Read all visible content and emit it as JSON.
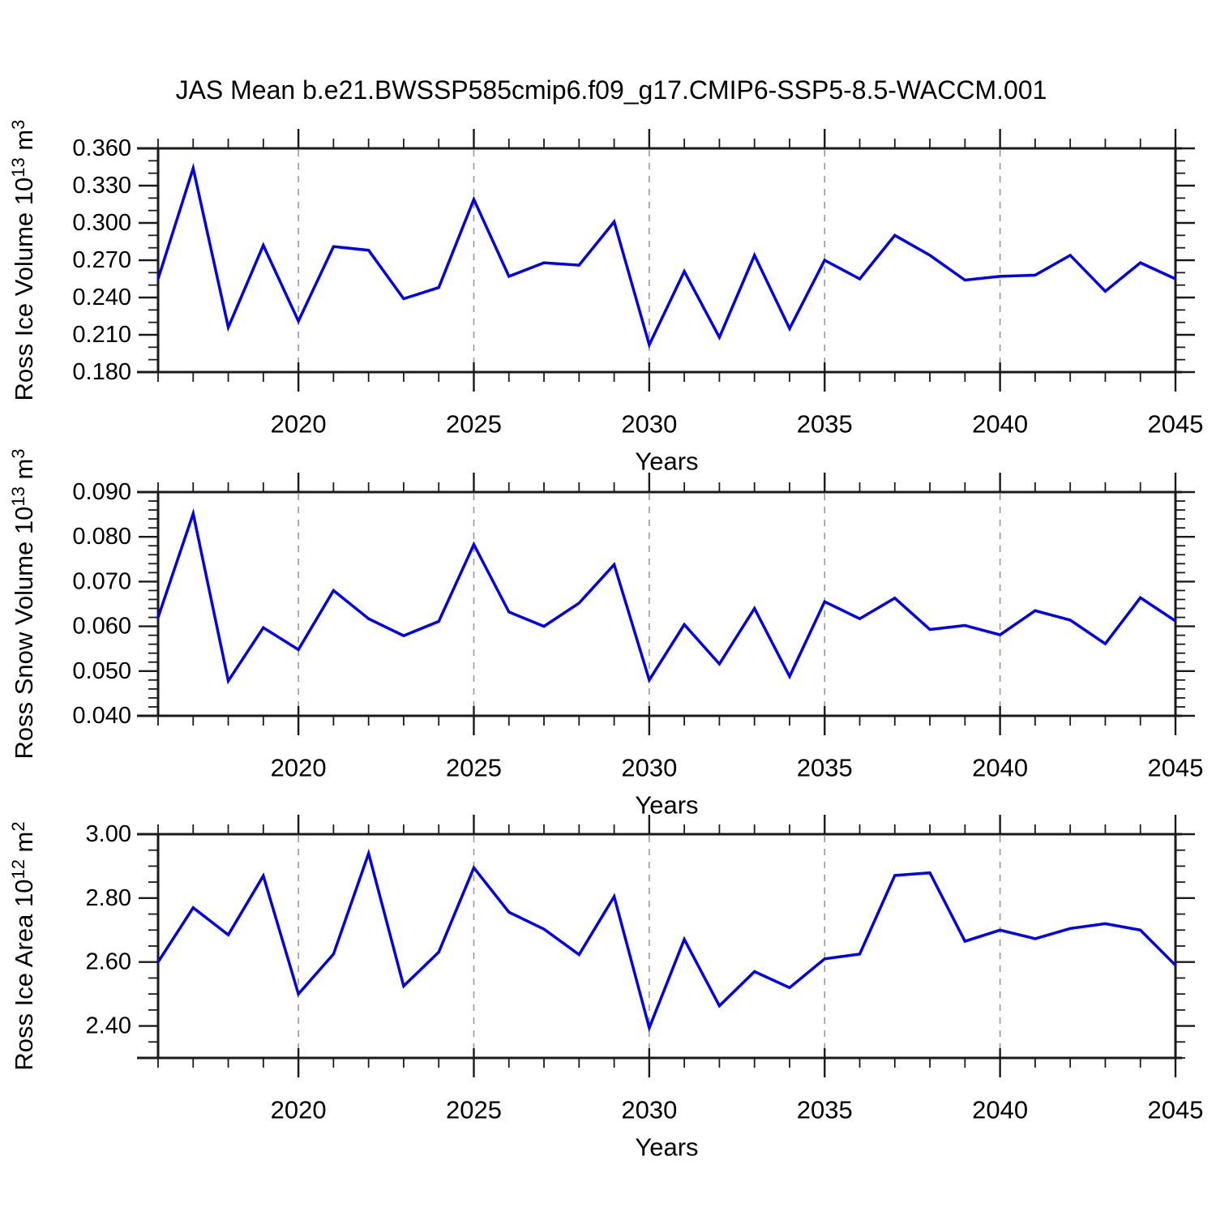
{
  "title": "JAS Mean b.e21.BWSSP585cmip6.f09_g17.CMIP6-SSP5-8.5-WACCM.001",
  "colors": {
    "series": "#0000EE",
    "grid_dashed": "#999999",
    "axis": "#1A1A1A",
    "text": "#000000",
    "background": "#FFFFFF"
  },
  "chart_data": [
    {
      "id": "ross-ice-volume",
      "type": "line",
      "ylabel": "Ross Ice Volume 10^13 m^3",
      "ylabel_parts": [
        {
          "t": "Ross Ice Volume 10"
        },
        {
          "t": "13",
          "sup": true
        },
        {
          "t": " m"
        },
        {
          "t": "3",
          "sup": true
        }
      ],
      "xlabel": "Years",
      "xlim": [
        2016,
        2045
      ],
      "xtick_labeled": [
        2020,
        2025,
        2030,
        2035,
        2040,
        2045
      ],
      "x_dashed_gridlines": [
        2020,
        2025,
        2030,
        2035,
        2040
      ],
      "ylim": [
        0.18,
        0.36
      ],
      "ytick_major_step": 0.03,
      "ytick_minor_step": 0.01,
      "ytick_decimals": 3,
      "x": [
        2016,
        2017,
        2018,
        2019,
        2020,
        2021,
        2022,
        2023,
        2024,
        2025,
        2026,
        2027,
        2028,
        2029,
        2030,
        2031,
        2032,
        2033,
        2034,
        2035,
        2036,
        2037,
        2038,
        2039,
        2040,
        2041,
        2042,
        2043,
        2044,
        2045
      ],
      "values": [
        0.255,
        0.344,
        0.216,
        0.282,
        0.221,
        0.281,
        0.278,
        0.239,
        0.248,
        0.319,
        0.257,
        0.268,
        0.266,
        0.301,
        0.202,
        0.261,
        0.208,
        0.274,
        0.215,
        0.27,
        0.255,
        0.29,
        0.274,
        0.254,
        0.257,
        0.258,
        0.274,
        0.245,
        0.268,
        0.255
      ]
    },
    {
      "id": "ross-snow-volume",
      "type": "line",
      "ylabel": "Ross Snow Volume 10^13 m^3",
      "ylabel_parts": [
        {
          "t": "Ross Snow Volume 10"
        },
        {
          "t": "13",
          "sup": true
        },
        {
          "t": " m"
        },
        {
          "t": "3",
          "sup": true
        }
      ],
      "xlabel": "Years",
      "xlim": [
        2016,
        2045
      ],
      "xtick_labeled": [
        2020,
        2025,
        2030,
        2035,
        2040,
        2045
      ],
      "x_dashed_gridlines": [
        2020,
        2025,
        2030,
        2035,
        2040
      ],
      "ylim": [
        0.04,
        0.09
      ],
      "ytick_major_step": 0.01,
      "ytick_minor_step": 0.002,
      "ytick_decimals": 3,
      "x": [
        2016,
        2017,
        2018,
        2019,
        2020,
        2021,
        2022,
        2023,
        2024,
        2025,
        2026,
        2027,
        2028,
        2029,
        2030,
        2031,
        2032,
        2033,
        2034,
        2035,
        2036,
        2037,
        2038,
        2039,
        2040,
        2041,
        2042,
        2043,
        2044,
        2045
      ],
      "values": [
        0.062,
        0.0852,
        0.0478,
        0.0597,
        0.0548,
        0.068,
        0.0617,
        0.0579,
        0.0611,
        0.0783,
        0.0632,
        0.06,
        0.0652,
        0.0738,
        0.048,
        0.0604,
        0.0516,
        0.064,
        0.0488,
        0.0655,
        0.0617,
        0.0663,
        0.0593,
        0.0602,
        0.0581,
        0.0635,
        0.0614,
        0.0561,
        0.0664,
        0.0612
      ]
    },
    {
      "id": "ross-ice-area",
      "type": "line",
      "ylabel": "Ross Ice Area 10^12 m^2",
      "ylabel_parts": [
        {
          "t": "Ross Ice Area 10"
        },
        {
          "t": "12",
          "sup": true
        },
        {
          "t": " m"
        },
        {
          "t": "2",
          "sup": true
        }
      ],
      "xlabel": "Years",
      "xlim": [
        2016,
        2045
      ],
      "xtick_labeled": [
        2020,
        2025,
        2030,
        2035,
        2040,
        2045
      ],
      "x_dashed_gridlines": [
        2020,
        2025,
        2030,
        2035,
        2040
      ],
      "ylim": [
        2.3,
        3.0
      ],
      "ytick_major_step": 0.2,
      "ytick_minor_step": 0.05,
      "ytick_decimals": 2,
      "x": [
        2016,
        2017,
        2018,
        2019,
        2020,
        2021,
        2022,
        2023,
        2024,
        2025,
        2026,
        2027,
        2028,
        2029,
        2030,
        2031,
        2032,
        2033,
        2034,
        2035,
        2036,
        2037,
        2038,
        2039,
        2040,
        2041,
        2042,
        2043,
        2044,
        2045
      ],
      "values": [
        2.6,
        2.77,
        2.685,
        2.87,
        2.5,
        2.625,
        2.94,
        2.525,
        2.631,
        2.895,
        2.756,
        2.703,
        2.623,
        2.805,
        2.394,
        2.671,
        2.463,
        2.57,
        2.52,
        2.61,
        2.625,
        2.871,
        2.879,
        2.665,
        2.7,
        2.673,
        2.705,
        2.72,
        2.7,
        2.59
      ]
    }
  ]
}
